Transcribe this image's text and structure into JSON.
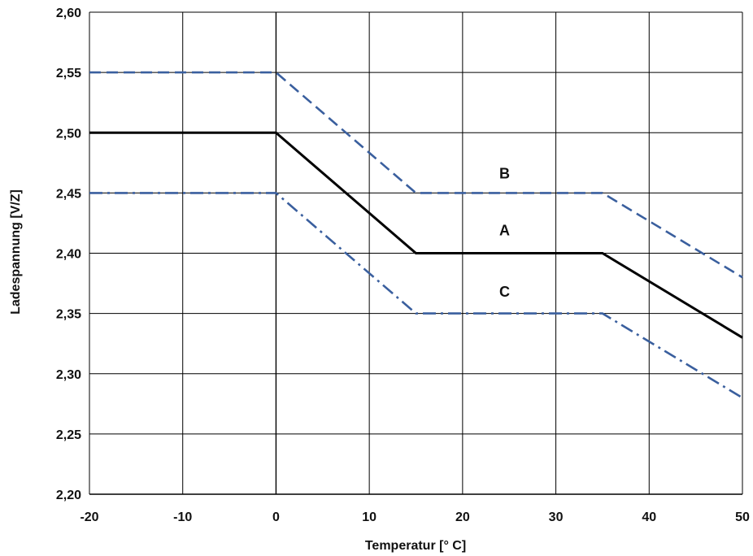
{
  "chart_data": {
    "type": "line",
    "title": "",
    "xlabel": "Temperatur [° C]",
    "ylabel": "Ladespannung [V/Z]",
    "xlim": [
      -20,
      50
    ],
    "ylim": [
      2.2,
      2.6
    ],
    "grid": true,
    "x_ticks": [
      {
        "value": -20,
        "label": "-20"
      },
      {
        "value": -10,
        "label": "-10"
      },
      {
        "value": 0,
        "label": "0"
      },
      {
        "value": 10,
        "label": "10"
      },
      {
        "value": 20,
        "label": "20"
      },
      {
        "value": 30,
        "label": "30"
      },
      {
        "value": 40,
        "label": "40"
      },
      {
        "value": 50,
        "label": "50"
      }
    ],
    "y_ticks": [
      {
        "value": 2.2,
        "label": "2,20"
      },
      {
        "value": 2.25,
        "label": "2,25"
      },
      {
        "value": 2.3,
        "label": "2,30"
      },
      {
        "value": 2.35,
        "label": "2,35"
      },
      {
        "value": 2.4,
        "label": "2,40"
      },
      {
        "value": 2.45,
        "label": "2,45"
      },
      {
        "value": 2.5,
        "label": "2,50"
      },
      {
        "value": 2.55,
        "label": "2,55"
      },
      {
        "value": 2.6,
        "label": "2,60"
      }
    ],
    "series": [
      {
        "name": "A",
        "style": "solid",
        "color": "#000000",
        "x": [
          -20,
          0,
          15,
          35,
          50
        ],
        "y": [
          2.5,
          2.5,
          2.4,
          2.4,
          2.33
        ],
        "label_at": {
          "x": 24.5,
          "y": 2.415
        }
      },
      {
        "name": "B",
        "style": "dashed",
        "color": "#3a5f9e",
        "x": [
          -20,
          0,
          15,
          35,
          50
        ],
        "y": [
          2.55,
          2.55,
          2.45,
          2.45,
          2.38
        ],
        "label_at": {
          "x": 24.5,
          "y": 2.462
        }
      },
      {
        "name": "C",
        "style": "dashdot",
        "color": "#3a5f9e",
        "x": [
          -20,
          0,
          15,
          35,
          50
        ],
        "y": [
          2.45,
          2.45,
          2.35,
          2.35,
          2.28
        ],
        "label_at": {
          "x": 24.5,
          "y": 2.364
        }
      }
    ]
  }
}
